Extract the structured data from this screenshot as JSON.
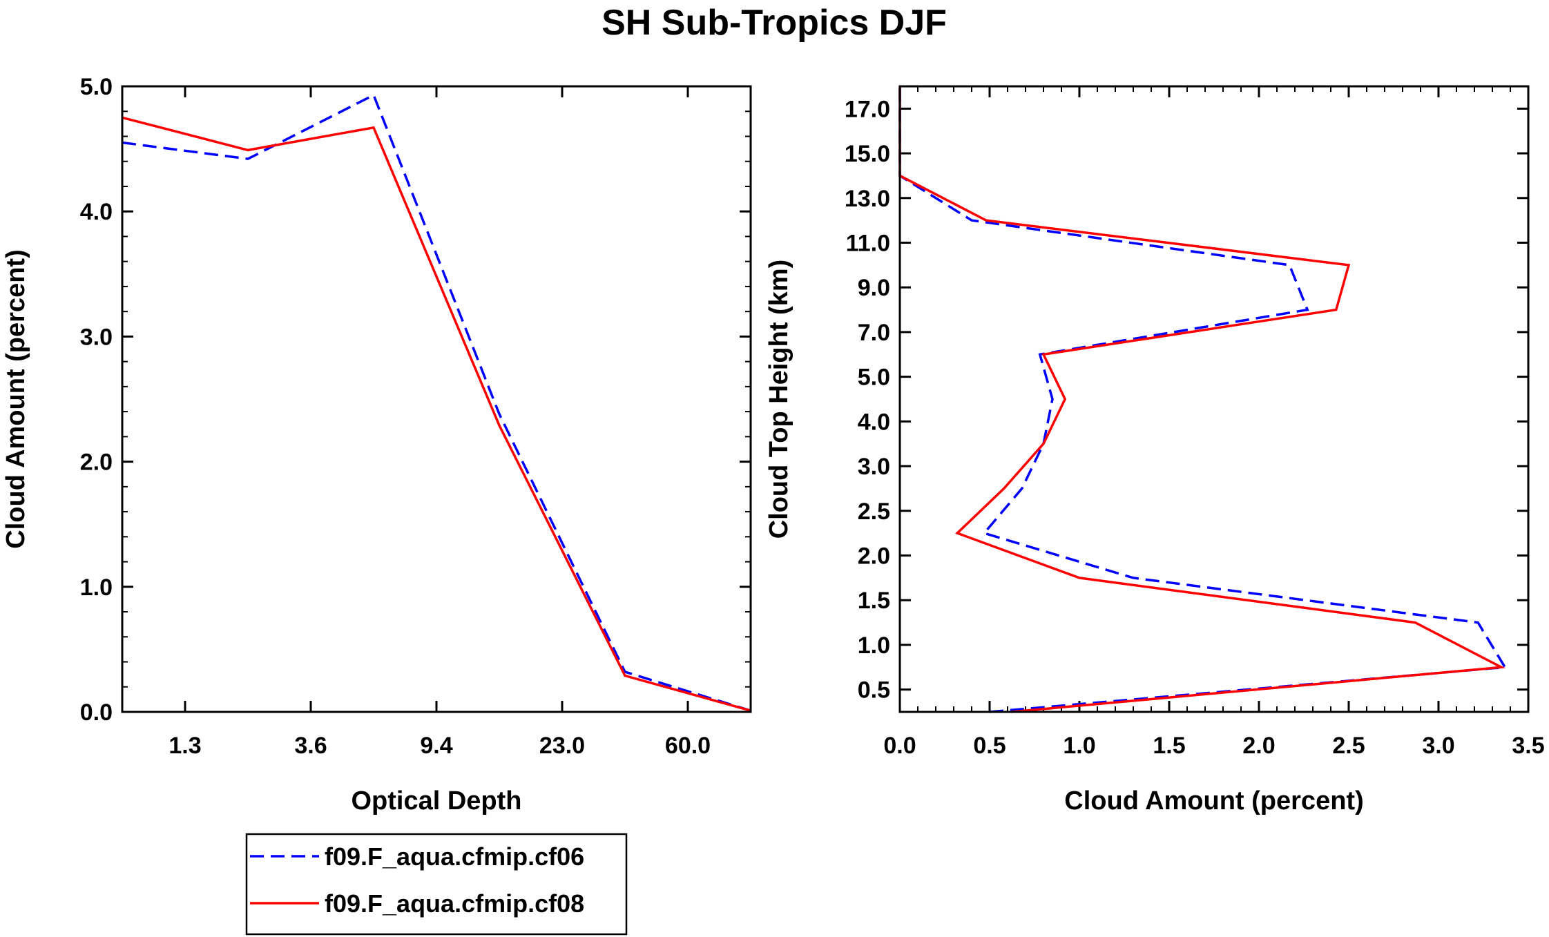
{
  "title": "SH Sub-Tropics DJF",
  "colors": {
    "series1": "#0000ff",
    "series2": "#ff0000",
    "axis": "#000000"
  },
  "chart_data": [
    {
      "type": "line",
      "xlabel": "Optical Depth",
      "ylabel": "Cloud Amount (percent)",
      "x_index": [
        0,
        1,
        2,
        3,
        4,
        5
      ],
      "x_tick_positions": [
        0.5,
        1.5,
        2.5,
        3.5,
        4.5
      ],
      "x_tick_labels": [
        "1.3",
        "3.6",
        "9.4",
        "23.0",
        "60.0"
      ],
      "xlim": [
        0,
        5
      ],
      "ylim": [
        0,
        5
      ],
      "y_ticks": [
        0,
        1,
        2,
        3,
        4,
        5
      ],
      "y_tick_labels": [
        "0.0",
        "1.0",
        "2.0",
        "3.0",
        "4.0",
        "5.0"
      ],
      "series": [
        {
          "name": "f09.F_aqua.cfmip.cf06",
          "style": "dashed",
          "x": [
            0,
            1,
            2,
            3,
            4,
            5
          ],
          "values": [
            4.55,
            4.42,
            4.93,
            2.38,
            0.32,
            0.01
          ]
        },
        {
          "name": "f09.F_aqua.cfmip.cf08",
          "style": "solid",
          "x": [
            0,
            1,
            2,
            3,
            4,
            5
          ],
          "values": [
            4.75,
            4.49,
            4.67,
            2.29,
            0.29,
            0.01
          ]
        }
      ]
    },
    {
      "type": "line",
      "orientation": "horizontal",
      "xlabel": "Cloud Amount (percent)",
      "ylabel": "Cloud Top Height (km)",
      "xlim": [
        0,
        3.5
      ],
      "x_ticks": [
        0,
        0.5,
        1.0,
        1.5,
        2.0,
        2.5,
        3.0,
        3.5
      ],
      "x_tick_labels": [
        "0.0",
        "0.5",
        "1.0",
        "1.5",
        "2.0",
        "2.5",
        "3.0",
        "3.5"
      ],
      "ylim": [
        0,
        14
      ],
      "y_tick_positions": [
        0.5,
        1.5,
        2.5,
        3.5,
        4.5,
        5.5,
        6.5,
        7.5,
        8.5,
        9.5,
        10.5,
        11.5,
        12.5,
        13.5
      ],
      "y_tick_labels": [
        "0.5",
        "1.0",
        "1.5",
        "2.0",
        "2.5",
        "3.0",
        "4.0",
        "5.0",
        "7.0",
        "9.0",
        "11.0",
        "13.0",
        "15.0",
        "17.0"
      ],
      "series": [
        {
          "name": "f09.F_aqua.cfmip.cf06",
          "style": "dashed",
          "amount": [
            0.5,
            3.37,
            3.22,
            1.3,
            0.47,
            0.68,
            0.8,
            0.85,
            0.78,
            2.27,
            2.17,
            0.4,
            0.0,
            0.0,
            0.0
          ],
          "height_index": [
            0,
            1,
            2,
            3,
            4,
            5,
            6,
            7,
            8,
            9,
            10,
            11,
            12,
            13,
            14
          ]
        },
        {
          "name": "f09.F_aqua.cfmip.cf08",
          "style": "solid",
          "amount": [
            0.62,
            3.35,
            2.87,
            1.0,
            0.32,
            0.58,
            0.8,
            0.92,
            0.8,
            2.43,
            2.5,
            0.48,
            0.0,
            0.0,
            0.0
          ],
          "height_index": [
            0,
            1,
            2,
            3,
            4,
            5,
            6,
            7,
            8,
            9,
            10,
            11,
            12,
            13,
            14
          ]
        }
      ]
    }
  ],
  "legend": [
    {
      "label": "f09.F_aqua.cfmip.cf06",
      "style": "dashed"
    },
    {
      "label": "f09.F_aqua.cfmip.cf08",
      "style": "solid"
    }
  ]
}
